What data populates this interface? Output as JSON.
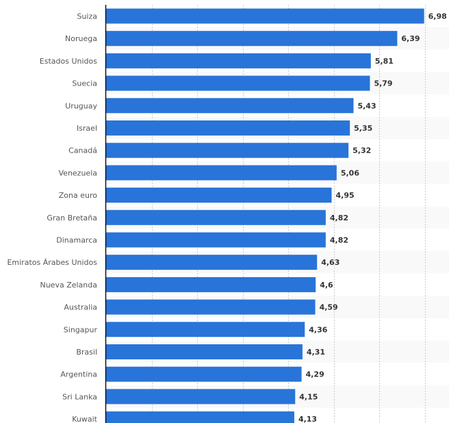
{
  "chart_data": {
    "type": "bar",
    "orientation": "horizontal",
    "title": "",
    "xlabel": "",
    "ylabel": "",
    "xlim": [
      0,
      7
    ],
    "grid": true,
    "bar_color": "#2874d9",
    "stripe_color": "#f9f9f9",
    "categories": [
      "Suiza",
      "Noruega",
      "Estados Unidos",
      "Suecia",
      "Uruguay",
      "Israel",
      "Canadá",
      "Venezuela",
      "Zona euro",
      "Gran Bretaña",
      "Dinamarca",
      "Emiratos Árabes Unidos",
      "Nueva Zelanda",
      "Australia",
      "Singapur",
      "Brasil",
      "Argentina",
      "Sri Lanka",
      "Kuwait"
    ],
    "values": [
      6.98,
      6.39,
      5.81,
      5.79,
      5.43,
      5.35,
      5.32,
      5.06,
      4.95,
      4.82,
      4.82,
      4.63,
      4.6,
      4.59,
      4.36,
      4.31,
      4.29,
      4.15,
      4.13
    ],
    "value_labels": [
      "6,98",
      "6,39",
      "5,81",
      "5,79",
      "5,43",
      "5,35",
      "5,32",
      "5,06",
      "4,95",
      "4,82",
      "4,82",
      "4,63",
      "4,6",
      "4,59",
      "4,36",
      "4,31",
      "4,29",
      "4,15",
      "4,13"
    ]
  }
}
